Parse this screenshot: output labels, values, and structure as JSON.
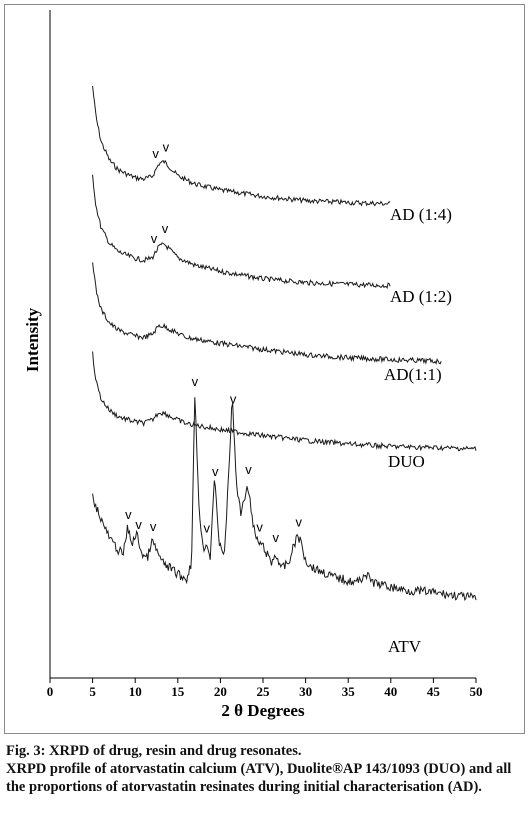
{
  "chart_data": {
    "type": "line",
    "xlabel": "2 θ Degrees",
    "ylabel": "Intensity",
    "xlim": [
      0,
      50
    ],
    "x_ticks": [
      "0",
      "5",
      "10",
      "15",
      "20",
      "25",
      "30",
      "35",
      "40",
      "45",
      "50"
    ],
    "grid": false,
    "peak_marker": "v",
    "series": [
      {
        "name": "AD (1:4)",
        "x_range": [
          5,
          40
        ],
        "points": [
          [
            5,
            280
          ],
          [
            5.4,
            230
          ],
          [
            6,
            190
          ],
          [
            7,
            160
          ],
          [
            8,
            145
          ],
          [
            9,
            138
          ],
          [
            10,
            132
          ],
          [
            11,
            130
          ],
          [
            12,
            134
          ],
          [
            12.8,
            155
          ],
          [
            13.4,
            158
          ],
          [
            14,
            150
          ],
          [
            15,
            135
          ],
          [
            17,
            122
          ],
          [
            20,
            112
          ],
          [
            25,
            102
          ],
          [
            30,
            95
          ],
          [
            35,
            92
          ],
          [
            40,
            90
          ]
        ],
        "peak_markers_x": [
          12.4,
          13.6
        ]
      },
      {
        "name": "AD (1:2)",
        "x_range": [
          5,
          40
        ],
        "points": [
          [
            5,
            265
          ],
          [
            5.4,
            215
          ],
          [
            6,
            180
          ],
          [
            7,
            155
          ],
          [
            8,
            142
          ],
          [
            9,
            136
          ],
          [
            10,
            131
          ],
          [
            11,
            128
          ],
          [
            12,
            132
          ],
          [
            12.8,
            150
          ],
          [
            13.4,
            154
          ],
          [
            14,
            146
          ],
          [
            15,
            132
          ],
          [
            17,
            120
          ],
          [
            20,
            110
          ],
          [
            25,
            98
          ],
          [
            30,
            92
          ],
          [
            35,
            89
          ],
          [
            40,
            87
          ]
        ],
        "peak_markers_x": [
          12.2,
          13.5
        ]
      },
      {
        "name": "AD(1:1)",
        "x_range": [
          5,
          46
        ],
        "points": [
          [
            5,
            255
          ],
          [
            5.4,
            205
          ],
          [
            6,
            172
          ],
          [
            7,
            150
          ],
          [
            8,
            138
          ],
          [
            9,
            133
          ],
          [
            10,
            128
          ],
          [
            11,
            126
          ],
          [
            12,
            131
          ],
          [
            12.8,
            146
          ],
          [
            13.5,
            144
          ],
          [
            14.5,
            136
          ],
          [
            16,
            126
          ],
          [
            20,
            116
          ],
          [
            25,
            106
          ],
          [
            30,
            97
          ],
          [
            35,
            92
          ],
          [
            40,
            89
          ],
          [
            46,
            86
          ]
        ],
        "peak_markers_x": []
      },
      {
        "name": "DUO",
        "x_range": [
          5,
          50
        ],
        "points": [
          [
            5,
            240
          ],
          [
            5.4,
            195
          ],
          [
            6,
            165
          ],
          [
            7,
            146
          ],
          [
            8,
            136
          ],
          [
            9,
            131
          ],
          [
            10,
            127
          ],
          [
            11,
            125
          ],
          [
            12,
            130
          ],
          [
            12.8,
            143
          ],
          [
            13.5,
            141
          ],
          [
            14.5,
            133
          ],
          [
            16,
            124
          ],
          [
            20,
            114
          ],
          [
            25,
            104
          ],
          [
            30,
            96
          ],
          [
            35,
            90
          ],
          [
            40,
            86
          ],
          [
            45,
            84
          ],
          [
            50,
            82
          ]
        ],
        "peak_markers_x": []
      },
      {
        "name": "ATV",
        "x_range": [
          5,
          50
        ],
        "points": [
          [
            5,
            210
          ],
          [
            6,
            190
          ],
          [
            7,
            172
          ],
          [
            8,
            162
          ],
          [
            8.6,
            158
          ],
          [
            9.1,
            182
          ],
          [
            9.6,
            168
          ],
          [
            10.2,
            176
          ],
          [
            10.8,
            158
          ],
          [
            11.4,
            154
          ],
          [
            12,
            170
          ],
          [
            12.6,
            160
          ],
          [
            13.2,
            150
          ],
          [
            14,
            146
          ],
          [
            15,
            140
          ],
          [
            16,
            135
          ],
          [
            16.6,
            150
          ],
          [
            17,
            300
          ],
          [
            17.5,
            200
          ],
          [
            18,
            160
          ],
          [
            18.3,
            170
          ],
          [
            18.8,
            155
          ],
          [
            19.3,
            230
          ],
          [
            19.8,
            170
          ],
          [
            20.5,
            158
          ],
          [
            21.4,
            300
          ],
          [
            21.9,
            220
          ],
          [
            22.4,
            195
          ],
          [
            22.8,
            210
          ],
          [
            23.3,
            220
          ],
          [
            23.8,
            185
          ],
          [
            24.3,
            170
          ],
          [
            25,
            165
          ],
          [
            26,
            150
          ],
          [
            26.5,
            158
          ],
          [
            27.2,
            145
          ],
          [
            28,
            150
          ],
          [
            29,
            175
          ],
          [
            29.5,
            168
          ],
          [
            30,
            152
          ],
          [
            31,
            145
          ],
          [
            32,
            142
          ],
          [
            33,
            138
          ],
          [
            34,
            136
          ],
          [
            35,
            134
          ],
          [
            36,
            132
          ],
          [
            37,
            140
          ],
          [
            38,
            132
          ],
          [
            40,
            128
          ],
          [
            42,
            125
          ],
          [
            44,
            124
          ],
          [
            46,
            122
          ],
          [
            48,
            120
          ],
          [
            50,
            118
          ]
        ],
        "peak_markers_x": [
          9.2,
          10.4,
          12.1,
          17.0,
          18.4,
          19.4,
          21.5,
          23.3,
          24.6,
          26.5,
          29.2
        ]
      }
    ]
  },
  "caption": {
    "title": "Fig. 3: XRPD of drug, resin and drug resonates.",
    "body": "XRPD profile of atorvastatin calcium (ATV), Duolite®AP 143/1093 (DUO) and all the proportions of atorvastatin resinates during initial characterisation (AD)."
  }
}
